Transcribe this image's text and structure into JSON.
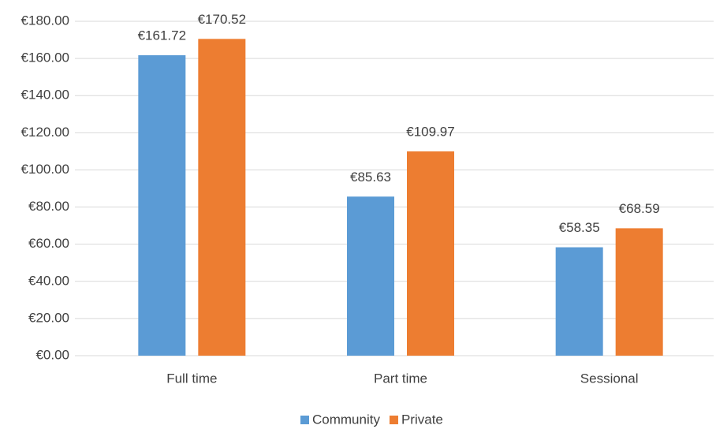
{
  "chart_data": {
    "type": "bar",
    "categories": [
      "Full time",
      "Part time",
      "Sessional"
    ],
    "series": [
      {
        "name": "Community",
        "color": "#5b9bd5",
        "values": [
          161.72,
          85.63,
          58.35
        ],
        "value_labels": [
          "€161.72",
          "€85.63",
          "€58.35"
        ]
      },
      {
        "name": "Private",
        "color": "#ed7d31",
        "values": [
          170.52,
          109.97,
          68.59
        ],
        "value_labels": [
          "€170.52",
          "€109.97",
          "€68.59"
        ]
      }
    ],
    "ylim": [
      0,
      180
    ],
    "yticks": [
      {
        "value": 0,
        "label": "€0.00"
      },
      {
        "value": 20,
        "label": "€20.00"
      },
      {
        "value": 40,
        "label": "€40.00"
      },
      {
        "value": 60,
        "label": "€60.00"
      },
      {
        "value": 80,
        "label": "€80.00"
      },
      {
        "value": 100,
        "label": "€100.00"
      },
      {
        "value": 120,
        "label": "€120.00"
      },
      {
        "value": 140,
        "label": "€140.00"
      },
      {
        "value": 160,
        "label": "€160.00"
      },
      {
        "value": 180,
        "label": "€180.00"
      }
    ],
    "grid": true,
    "legend": "bottom"
  }
}
